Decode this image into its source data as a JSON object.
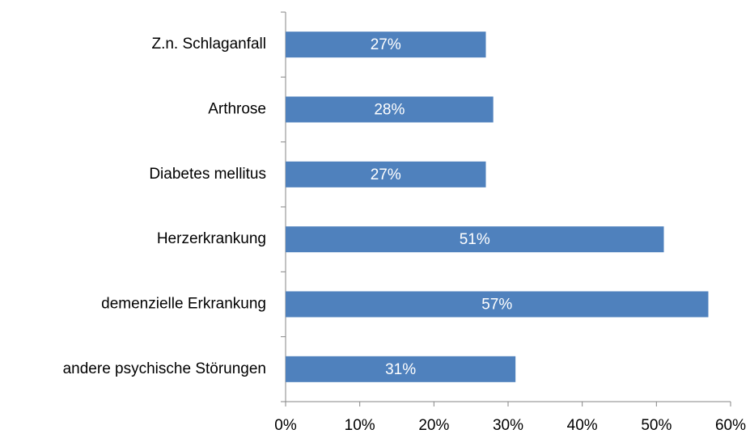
{
  "chart_data": {
    "type": "bar",
    "orientation": "horizontal",
    "categories": [
      "Z.n. Schlaganfall",
      "Arthrose",
      "Diabetes mellitus",
      "Herzerkrankung",
      "demenzielle Erkrankung",
      "andere psychische Störungen"
    ],
    "values": [
      27,
      28,
      27,
      51,
      57,
      31
    ],
    "value_labels": [
      "27%",
      "28%",
      "27%",
      "51%",
      "57%",
      "31%"
    ],
    "color": "#4f81bd",
    "xlim": [
      0,
      60
    ],
    "xticks": [
      {
        "value": 0,
        "label": "0%"
      },
      {
        "value": 10,
        "label": "10%"
      },
      {
        "value": 20,
        "label": "20%"
      },
      {
        "value": 30,
        "label": "30%"
      },
      {
        "value": 40,
        "label": "40%"
      },
      {
        "value": 50,
        "label": "50%"
      },
      {
        "value": 60,
        "label": "60%"
      }
    ],
    "grid": false
  }
}
